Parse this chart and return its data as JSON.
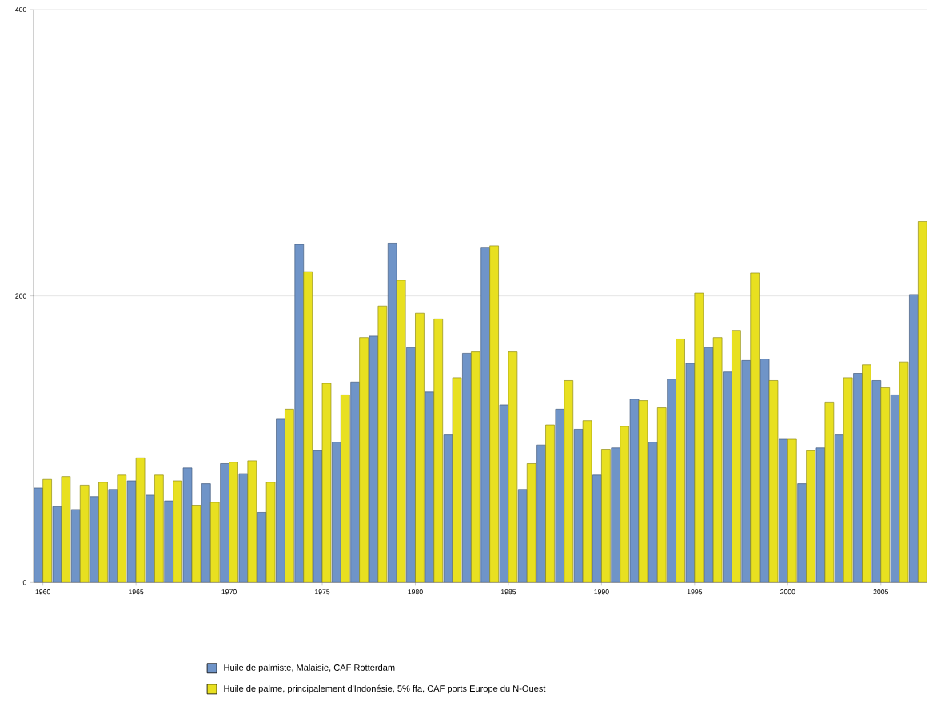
{
  "chart_data": {
    "type": "bar",
    "categories": [
      "1960",
      null,
      null,
      null,
      null,
      "1965",
      null,
      null,
      null,
      null,
      "1970",
      null,
      null,
      null,
      null,
      "1975",
      null,
      null,
      null,
      null,
      "1980",
      null,
      null,
      null,
      null,
      "1985",
      null,
      null,
      null,
      null,
      "1990",
      null,
      null,
      null,
      null,
      "1995",
      null,
      null,
      null,
      null,
      "2000",
      null,
      null,
      null,
      null,
      "2005",
      null,
      null
    ],
    "series": [
      {
        "name": "Huile de palmiste, Malaisie, CAF Rotterdam",
        "color": "#6f94c8",
        "values": [
          66,
          53,
          51,
          60,
          65,
          71,
          61,
          57,
          80,
          69,
          83,
          76,
          49,
          114,
          236,
          92,
          98,
          140,
          172,
          237,
          164,
          133,
          103,
          160,
          234,
          124,
          65,
          96,
          121,
          107,
          75,
          94,
          128,
          98,
          142,
          153,
          164,
          147,
          155,
          156,
          100,
          69,
          94,
          103,
          146,
          141,
          131,
          201
        ]
      },
      {
        "name": "Huile de palme, principalement d'Indonésie, 5% ffa, CAF ports Europe du N-Ouest",
        "color": "#e8e020",
        "values": [
          72,
          74,
          68,
          70,
          75,
          87,
          75,
          71,
          54,
          56,
          84,
          85,
          70,
          121,
          217,
          139,
          131,
          171,
          193,
          211,
          188,
          184,
          143,
          161,
          235,
          161,
          83,
          110,
          141,
          113,
          93,
          109,
          127,
          122,
          170,
          202,
          171,
          176,
          216,
          141,
          100,
          92,
          126,
          143,
          152,
          136,
          154,
          252
        ]
      }
    ],
    "ylim": [
      0,
      400
    ],
    "yticks": [
      0,
      200,
      400
    ],
    "grid": "y",
    "legend": "bottom"
  }
}
